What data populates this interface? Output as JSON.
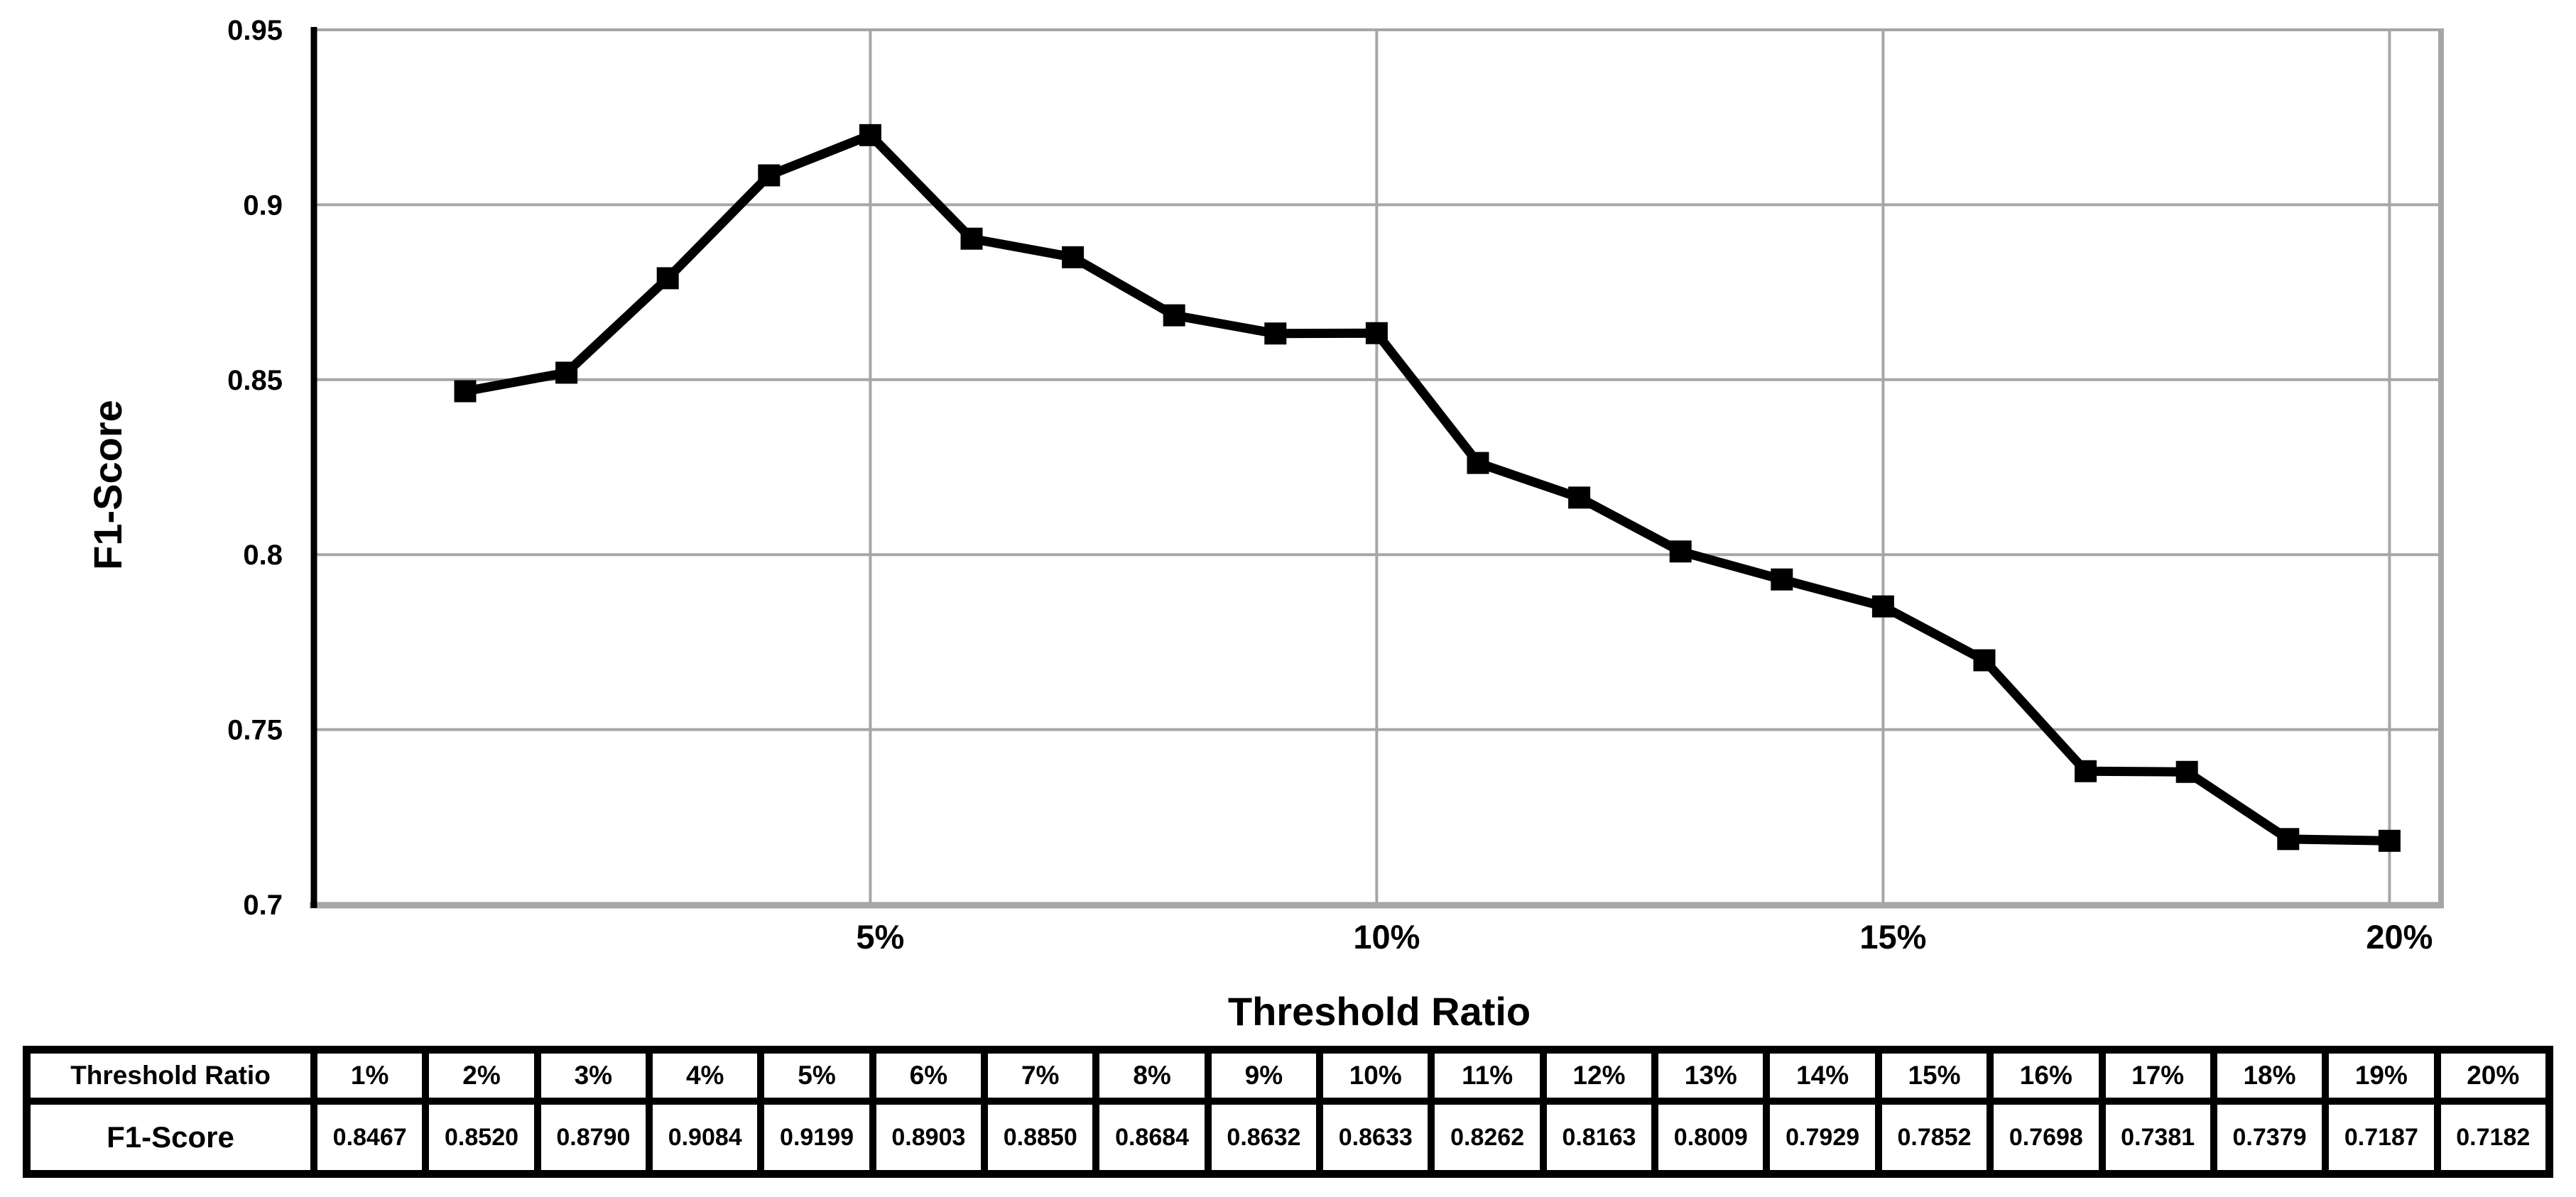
{
  "chart_data": {
    "type": "line",
    "title": "",
    "xlabel": "Threshold Ratio",
    "ylabel": "F1-Score",
    "categories": [
      "1%",
      "2%",
      "3%",
      "4%",
      "5%",
      "6%",
      "7%",
      "8%",
      "9%",
      "10%",
      "11%",
      "12%",
      "13%",
      "14%",
      "15%",
      "16%",
      "17%",
      "18%",
      "19%",
      "20%"
    ],
    "values": [
      0.8467,
      0.852,
      0.879,
      0.9084,
      0.9199,
      0.8903,
      0.885,
      0.8684,
      0.8632,
      0.8633,
      0.8262,
      0.8163,
      0.8009,
      0.7929,
      0.7852,
      0.7698,
      0.7381,
      0.7379,
      0.7187,
      0.7182
    ],
    "ylim": [
      0.7,
      0.95
    ],
    "ytick_values": [
      0.95,
      0.9,
      0.85,
      0.8,
      0.75,
      0.7
    ],
    "ytick_labels": [
      "0.95",
      "0.9",
      "0.85",
      "0.8",
      "0.75",
      "0.7"
    ],
    "xtick_labels_shown": [
      "5%",
      "10%",
      "15%",
      "20%"
    ],
    "grid": true,
    "legend": "none",
    "line_color": "#000000",
    "marker": "square",
    "gridline_color": "#a6a6a6"
  },
  "table": {
    "row1_header": "Threshold Ratio",
    "row2_header": "F1-Score",
    "columns": [
      "1%",
      "2%",
      "3%",
      "4%",
      "5%",
      "6%",
      "7%",
      "8%",
      "9%",
      "10%",
      "11%",
      "12%",
      "13%",
      "14%",
      "15%",
      "16%",
      "17%",
      "18%",
      "19%",
      "20%"
    ],
    "values": [
      "0.8467",
      "0.8520",
      "0.8790",
      "0.9084",
      "0.9199",
      "0.8903",
      "0.8850",
      "0.8684",
      "0.8632",
      "0.8633",
      "0.8262",
      "0.8163",
      "0.8009",
      "0.7929",
      "0.7852",
      "0.7698",
      "0.7381",
      "0.7379",
      "0.7187",
      "0.7182"
    ]
  }
}
